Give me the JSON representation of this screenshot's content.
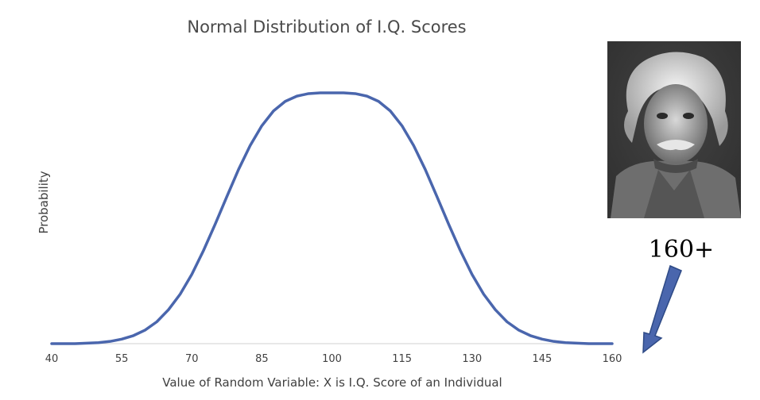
{
  "chart_data": {
    "type": "line",
    "title": "Normal Distribution of I.Q. Scores",
    "xlabel": "Value of Random Variable: X is I.Q. Score of an Individual",
    "ylabel": "Probability",
    "xlim": [
      40,
      160
    ],
    "ylim": [
      0,
      1
    ],
    "x_ticks": [
      "40",
      "55",
      "70",
      "85",
      "100",
      "115",
      "130",
      "145",
      "160"
    ],
    "y_ticks": [],
    "grid": false,
    "legend": "none",
    "series": [
      {
        "color": "#4a66ad",
        "x": [
          40,
          45,
          50,
          52.5,
          55,
          57.5,
          60,
          62.5,
          65,
          67.5,
          70,
          72.5,
          75,
          77.5,
          80,
          82.5,
          85,
          87.5,
          90,
          92.5,
          95,
          97.5,
          100,
          102.5,
          105,
          107.5,
          110,
          112.5,
          115,
          117.5,
          120,
          122.5,
          125,
          127.5,
          130,
          132.5,
          135,
          137.5,
          140,
          142.5,
          145,
          147.5,
          150,
          155,
          160
        ],
        "y": [
          0,
          0,
          0.004,
          0.009,
          0.018,
          0.032,
          0.054,
          0.087,
          0.135,
          0.197,
          0.276,
          0.371,
          0.476,
          0.586,
          0.694,
          0.79,
          0.869,
          0.928,
          0.966,
          0.987,
          0.997,
          1.0,
          1.0,
          1.0,
          0.997,
          0.987,
          0.966,
          0.928,
          0.869,
          0.79,
          0.694,
          0.586,
          0.476,
          0.371,
          0.276,
          0.197,
          0.135,
          0.087,
          0.054,
          0.032,
          0.018,
          0.009,
          0.004,
          0,
          0
        ]
      }
    ],
    "annotations": [
      {
        "text": "160+",
        "points_to": 160
      }
    ]
  },
  "image": {
    "subject": "portrait-photo-icon"
  }
}
